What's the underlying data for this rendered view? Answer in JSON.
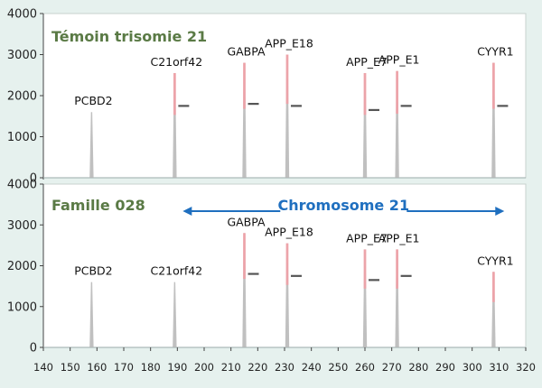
{
  "chart_data": [
    {
      "type": "line",
      "panel_title": "Témoin trisomie 21",
      "ylim": [
        0,
        4000
      ],
      "yticks": [
        0,
        1000,
        2000,
        3000,
        4000
      ],
      "xlim": [
        140,
        320
      ],
      "peaks": [
        {
          "label": "PCBD2",
          "x": 158,
          "height": 1600,
          "pink": false,
          "dash": null
        },
        {
          "label": "C21orf42",
          "x": 189,
          "height": 2550,
          "pink": true,
          "dash": 1750
        },
        {
          "label": "GABPA",
          "x": 215,
          "height": 2800,
          "pink": true,
          "dash": 1800
        },
        {
          "label": "APP_E18",
          "x": 231,
          "height": 3000,
          "pink": true,
          "dash": 1750
        },
        {
          "label": "APP_E7",
          "x": 260,
          "height": 2550,
          "pink": true,
          "dash": 1650
        },
        {
          "label": "APP_E1",
          "x": 272,
          "height": 2600,
          "pink": true,
          "dash": 1750
        },
        {
          "label": "CYYR1",
          "x": 308,
          "height": 2800,
          "pink": true,
          "dash": 1750
        }
      ]
    },
    {
      "type": "line",
      "panel_title": "Famille 028",
      "annotation": "Chromosome 21",
      "annotation_range": [
        190,
        312
      ],
      "ylim": [
        0,
        4000
      ],
      "yticks": [
        0,
        1000,
        2000,
        3000,
        4000
      ],
      "xlim": [
        140,
        320
      ],
      "xticks": [
        140,
        150,
        160,
        170,
        180,
        190,
        200,
        210,
        220,
        230,
        240,
        250,
        260,
        270,
        280,
        290,
        300,
        310,
        320
      ],
      "peaks": [
        {
          "label": "PCBD2",
          "x": 158,
          "height": 1600,
          "pink": false,
          "dash": null
        },
        {
          "label": "C21orf42",
          "x": 189,
          "height": 1600,
          "pink": false,
          "dash": null
        },
        {
          "label": "GABPA",
          "x": 215,
          "height": 2800,
          "pink": true,
          "dash": 1800
        },
        {
          "label": "APP_E18",
          "x": 231,
          "height": 2550,
          "pink": true,
          "dash": 1750
        },
        {
          "label": "APP_E7",
          "x": 260,
          "height": 2400,
          "pink": true,
          "dash": 1650
        },
        {
          "label": "APP_E1",
          "x": 272,
          "height": 2400,
          "pink": true,
          "dash": 1750
        },
        {
          "label": "CYYR1",
          "x": 308,
          "height": 1850,
          "pink": true,
          "dash": null
        }
      ]
    }
  ],
  "colors": {
    "background": "#e6f1ee",
    "plot": "#ffffff",
    "peak": "#b5b5b5",
    "pink": "#f0a0a6",
    "title": "#5a7a45",
    "arrow": "#1f6fbf"
  }
}
